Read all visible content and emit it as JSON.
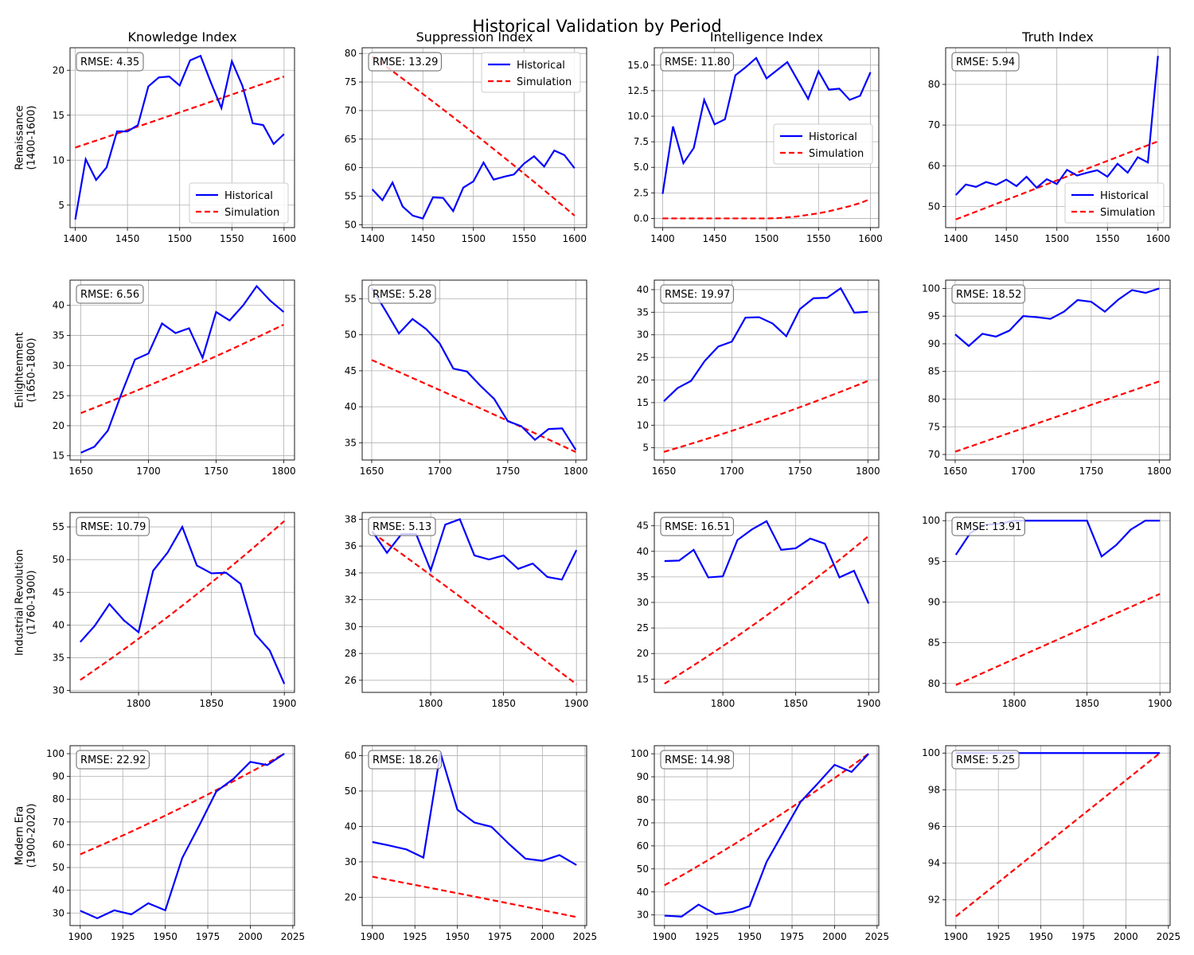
{
  "figure": {
    "title": "Historical Validation by Period"
  },
  "columns": [
    "Knowledge Index",
    "Suppression Index",
    "Intelligence Index",
    "Truth Index"
  ],
  "rows": [
    "Renaissance\n(1400-1600)",
    "Enlightenment\n(1650-1800)",
    "Industrial Revolution\n(1760-1900)",
    "Modern Era\n(1900-2020)"
  ],
  "legend": {
    "historical": "Historical",
    "simulation": "Simulation"
  },
  "colors": {
    "historical": "#0000ff",
    "simulation": "#ff0000",
    "grid": "#b0b0b0"
  },
  "chart_data": [
    {
      "type": "line",
      "row": 0,
      "col": 0,
      "title": "Knowledge Index",
      "rmse": "RMSE: 4.35",
      "legend": "lower right",
      "xlim": [
        1395,
        1610
      ],
      "ylim": [
        2.5,
        22.5
      ],
      "xticks": [
        1400,
        1450,
        1500,
        1550,
        1600
      ],
      "yticks": [
        5,
        10,
        15,
        20
      ],
      "historical": {
        "x": [
          1400,
          1410,
          1420,
          1430,
          1440,
          1450,
          1460,
          1470,
          1480,
          1490,
          1500,
          1510,
          1520,
          1530,
          1540,
          1550,
          1560,
          1570,
          1580,
          1590,
          1600
        ],
        "y": [
          3.4,
          10.1,
          7.8,
          9.2,
          13.2,
          13.2,
          13.9,
          18.2,
          19.2,
          19.3,
          18.3,
          21.1,
          21.6,
          18.6,
          15.8,
          21.0,
          18.3,
          14.1,
          13.9,
          11.8,
          12.9
        ]
      },
      "simulation": {
        "x": [
          1400,
          1600
        ],
        "y": [
          11.4,
          19.3
        ],
        "curve": 0.02
      }
    },
    {
      "type": "line",
      "row": 0,
      "col": 1,
      "title": "Suppression Index",
      "rmse": "RMSE: 13.29",
      "legend": "upper right",
      "xlim": [
        1390,
        1612
      ],
      "ylim": [
        49.5,
        81
      ],
      "xticks": [
        1400,
        1450,
        1500,
        1550,
        1600
      ],
      "yticks": [
        50,
        55,
        60,
        65,
        70,
        75,
        80
      ],
      "historical": {
        "x": [
          1400,
          1410,
          1420,
          1430,
          1440,
          1450,
          1460,
          1470,
          1480,
          1490,
          1500,
          1510,
          1520,
          1530,
          1540,
          1550,
          1560,
          1570,
          1580,
          1590,
          1600
        ],
        "y": [
          56.2,
          54.3,
          57.4,
          53.2,
          51.6,
          51.1,
          54.8,
          54.7,
          52.4,
          56.5,
          57.6,
          60.9,
          57.9,
          58.4,
          58.8,
          60.7,
          62.0,
          60.2,
          63.0,
          62.2,
          59.9
        ]
      },
      "simulation": {
        "x": [
          1400,
          1600
        ],
        "y": [
          79.5,
          51.6
        ],
        "curve": -0.08
      }
    },
    {
      "type": "line",
      "row": 0,
      "col": 2,
      "title": "Intelligence Index",
      "rmse": "RMSE: 11.80",
      "legend": "center right",
      "xlim": [
        1392,
        1608
      ],
      "ylim": [
        -0.9,
        16.7
      ],
      "xticks": [
        1400,
        1450,
        1500,
        1550,
        1600
      ],
      "yticks": [
        0.0,
        2.5,
        5.0,
        7.5,
        10.0,
        12.5,
        15.0
      ],
      "historical": {
        "x": [
          1400,
          1410,
          1420,
          1430,
          1440,
          1450,
          1460,
          1470,
          1480,
          1490,
          1500,
          1510,
          1520,
          1530,
          1540,
          1550,
          1560,
          1570,
          1580,
          1590,
          1600
        ],
        "y": [
          2.4,
          9.0,
          5.4,
          6.9,
          11.6,
          9.2,
          9.7,
          14.0,
          14.8,
          15.7,
          13.7,
          14.5,
          15.3,
          13.5,
          11.7,
          14.4,
          12.6,
          12.7,
          11.6,
          12.0,
          14.3
        ]
      },
      "simulation": {
        "x": [
          1400,
          1500,
          1510,
          1520,
          1530,
          1540,
          1550,
          1560,
          1570,
          1580,
          1590,
          1600
        ],
        "y": [
          0,
          0,
          0.02,
          0.1,
          0.2,
          0.35,
          0.5,
          0.7,
          0.95,
          1.2,
          1.5,
          1.9
        ]
      }
    },
    {
      "type": "line",
      "row": 0,
      "col": 3,
      "title": "Truth Index",
      "rmse": "RMSE: 5.94",
      "legend": "lower right",
      "xlim": [
        1390,
        1612
      ],
      "ylim": [
        44.8,
        89
      ],
      "xticks": [
        1400,
        1450,
        1500,
        1550,
        1600
      ],
      "yticks": [
        50,
        60,
        70,
        80
      ],
      "historical": {
        "x": [
          1400,
          1410,
          1420,
          1430,
          1440,
          1450,
          1460,
          1470,
          1480,
          1490,
          1500,
          1510,
          1520,
          1530,
          1540,
          1550,
          1560,
          1570,
          1580,
          1590,
          1600
        ],
        "y": [
          52.8,
          55.4,
          54.8,
          56.0,
          55.3,
          56.6,
          55.0,
          57.3,
          54.6,
          56.7,
          55.5,
          59.0,
          57.6,
          58.3,
          58.9,
          57.3,
          60.5,
          58.3,
          62.1,
          60.8,
          87.0
        ]
      },
      "simulation": {
        "x": [
          1400,
          1600
        ],
        "y": [
          46.8,
          66.0
        ],
        "curve": 0.0
      }
    },
    {
      "type": "line",
      "row": 1,
      "col": 0,
      "title": "",
      "rmse": "RMSE: 6.56",
      "legend": "",
      "xlim": [
        1642,
        1808
      ],
      "ylim": [
        14.3,
        44.2
      ],
      "xticks": [
        1650,
        1700,
        1750,
        1800
      ],
      "yticks": [
        15,
        20,
        25,
        30,
        35,
        40
      ],
      "historical": {
        "x": [
          1650,
          1660,
          1670,
          1680,
          1690,
          1700,
          1710,
          1720,
          1730,
          1740,
          1750,
          1760,
          1770,
          1780,
          1790,
          1800
        ],
        "y": [
          15.5,
          16.5,
          19.2,
          25.3,
          31.0,
          32.0,
          37.0,
          35.4,
          36.2,
          31.3,
          38.9,
          37.5,
          40.0,
          43.2,
          40.8,
          38.9
        ]
      },
      "simulation": {
        "x": [
          1650,
          1800
        ],
        "y": [
          22.1,
          36.8
        ],
        "curve": 0.12
      }
    },
    {
      "type": "line",
      "row": 1,
      "col": 1,
      "title": "",
      "rmse": "RMSE: 5.28",
      "legend": "",
      "xlim": [
        1643,
        1808
      ],
      "ylim": [
        32.6,
        57.6
      ],
      "xticks": [
        1650,
        1700,
        1750,
        1800
      ],
      "yticks": [
        35,
        40,
        45,
        50,
        55
      ],
      "historical": {
        "x": [
          1650,
          1660,
          1670,
          1680,
          1690,
          1700,
          1710,
          1720,
          1730,
          1740,
          1750,
          1760,
          1770,
          1780,
          1790,
          1800
        ],
        "y": [
          56.5,
          53.4,
          50.2,
          52.2,
          50.8,
          48.8,
          45.3,
          44.9,
          42.9,
          41.1,
          38.0,
          37.3,
          35.4,
          36.9,
          37.0,
          34.0
        ]
      },
      "simulation": {
        "x": [
          1650,
          1800
        ],
        "y": [
          46.5,
          33.7
        ],
        "curve": -0.03
      }
    },
    {
      "type": "line",
      "row": 1,
      "col": 2,
      "title": "",
      "rmse": "RMSE: 19.97",
      "legend": "",
      "xlim": [
        1643,
        1808
      ],
      "ylim": [
        2.3,
        42.1
      ],
      "xticks": [
        1650,
        1700,
        1750,
        1800
      ],
      "yticks": [
        5,
        10,
        15,
        20,
        25,
        30,
        35,
        40
      ],
      "historical": {
        "x": [
          1650,
          1660,
          1670,
          1680,
          1690,
          1700,
          1710,
          1720,
          1730,
          1740,
          1750,
          1760,
          1770,
          1780,
          1790,
          1800
        ],
        "y": [
          15.3,
          18.2,
          19.8,
          24.2,
          27.4,
          28.5,
          33.8,
          33.9,
          32.5,
          29.7,
          35.7,
          38.1,
          38.2,
          40.3,
          34.9,
          35.1
        ]
      },
      "simulation": {
        "x": [
          1650,
          1800
        ],
        "y": [
          4.1,
          19.8
        ],
        "curve": 0.2
      }
    },
    {
      "type": "line",
      "row": 1,
      "col": 3,
      "title": "",
      "rmse": "RMSE: 18.52",
      "legend": "",
      "xlim": [
        1643,
        1808
      ],
      "ylim": [
        69,
        101.5
      ],
      "xticks": [
        1650,
        1700,
        1750,
        1800
      ],
      "yticks": [
        70,
        75,
        80,
        85,
        90,
        95,
        100
      ],
      "historical": {
        "x": [
          1650,
          1660,
          1670,
          1680,
          1690,
          1700,
          1710,
          1720,
          1730,
          1740,
          1750,
          1760,
          1770,
          1780,
          1790,
          1800
        ],
        "y": [
          91.7,
          89.6,
          91.8,
          91.3,
          92.4,
          95.0,
          94.8,
          94.5,
          95.8,
          97.9,
          97.6,
          95.8,
          98.0,
          99.7,
          99.2,
          100.0
        ]
      },
      "simulation": {
        "x": [
          1650,
          1800
        ],
        "y": [
          70.5,
          83.2
        ],
        "curve": 0.0
      }
    },
    {
      "type": "line",
      "row": 2,
      "col": 0,
      "title": "",
      "rmse": "RMSE: 10.79",
      "legend": "",
      "xlim": [
        1753,
        1907
      ],
      "ylim": [
        29.7,
        57.2
      ],
      "xticks": [
        1800,
        1850,
        1900
      ],
      "yticks": [
        30,
        35,
        40,
        45,
        50,
        55
      ],
      "historical": {
        "x": [
          1760,
          1770,
          1780,
          1790,
          1800,
          1810,
          1820,
          1830,
          1840,
          1850,
          1860,
          1870,
          1880,
          1890,
          1900
        ],
        "y": [
          37.4,
          39.9,
          43.2,
          40.7,
          38.9,
          48.3,
          51.1,
          55.0,
          49.1,
          47.9,
          48.0,
          46.3,
          38.6,
          36.1,
          31.0
        ]
      },
      "simulation": {
        "x": [
          1760,
          1900
        ],
        "y": [
          31.6,
          55.9
        ],
        "curve": 0.15
      }
    },
    {
      "type": "line",
      "row": 2,
      "col": 1,
      "title": "",
      "rmse": "RMSE: 5.13",
      "legend": "",
      "xlim": [
        1753,
        1907
      ],
      "ylim": [
        25.1,
        38.5
      ],
      "xticks": [
        1800,
        1850,
        1900
      ],
      "yticks": [
        26,
        28,
        30,
        32,
        34,
        36,
        38
      ],
      "historical": {
        "x": [
          1760,
          1770,
          1780,
          1790,
          1800,
          1810,
          1820,
          1830,
          1840,
          1850,
          1860,
          1870,
          1880,
          1890,
          1900
        ],
        "y": [
          37.1,
          35.5,
          36.9,
          36.9,
          34.2,
          37.6,
          38.0,
          35.3,
          35.0,
          35.3,
          34.3,
          34.7,
          33.7,
          33.5,
          35.7
        ]
      },
      "simulation": {
        "x": [
          1760,
          1900
        ],
        "y": [
          37.0,
          25.7
        ],
        "curve": -0.03
      }
    },
    {
      "type": "line",
      "row": 2,
      "col": 2,
      "title": "",
      "rmse": "RMSE: 16.51",
      "legend": "",
      "xlim": [
        1753,
        1907
      ],
      "ylim": [
        12.4,
        47.6
      ],
      "xticks": [
        1800,
        1850,
        1900
      ],
      "yticks": [
        15,
        20,
        25,
        30,
        35,
        40,
        45
      ],
      "historical": {
        "x": [
          1760,
          1770,
          1780,
          1790,
          1800,
          1810,
          1820,
          1830,
          1840,
          1850,
          1860,
          1870,
          1880,
          1890,
          1900
        ],
        "y": [
          38.1,
          38.2,
          40.3,
          34.9,
          35.1,
          42.2,
          44.3,
          45.9,
          40.3,
          40.6,
          42.5,
          41.5,
          34.9,
          36.2,
          29.8
        ]
      },
      "simulation": {
        "x": [
          1760,
          1900
        ],
        "y": [
          14.1,
          43.0
        ],
        "curve": 0.18
      }
    },
    {
      "type": "line",
      "row": 2,
      "col": 3,
      "title": "",
      "rmse": "RMSE: 13.91",
      "legend": "",
      "xlim": [
        1753,
        1907
      ],
      "ylim": [
        78.9,
        101
      ],
      "xticks": [
        1800,
        1850,
        1900
      ],
      "yticks": [
        80,
        85,
        90,
        95,
        100
      ],
      "historical": {
        "x": [
          1760,
          1770,
          1780,
          1790,
          1800,
          1810,
          1820,
          1830,
          1840,
          1850,
          1860,
          1870,
          1880,
          1890,
          1900
        ],
        "y": [
          95.8,
          98.5,
          99.5,
          99.6,
          100.0,
          100.0,
          100.0,
          100.0,
          100.0,
          100.0,
          95.6,
          97.0,
          98.9,
          100.0,
          100.0
        ]
      },
      "simulation": {
        "x": [
          1760,
          1900
        ],
        "y": [
          79.8,
          91.0
        ],
        "curve": 0.0
      }
    },
    {
      "type": "line",
      "row": 3,
      "col": 0,
      "title": "",
      "rmse": "RMSE: 22.92",
      "legend": "",
      "xlim": [
        1894,
        2026
      ],
      "ylim": [
        24.5,
        103.5
      ],
      "xticks": [
        1900,
        1925,
        1950,
        1975,
        2000,
        2025
      ],
      "yticks": [
        30,
        40,
        50,
        60,
        70,
        80,
        90,
        100
      ],
      "historical": {
        "x": [
          1900,
          1910,
          1920,
          1930,
          1940,
          1950,
          1960,
          1970,
          1980,
          1990,
          2000,
          2010,
          2020
        ],
        "y": [
          31.0,
          27.7,
          31.2,
          29.4,
          34.3,
          31.2,
          54.2,
          68.5,
          83.4,
          88.9,
          96.4,
          95.0,
          100.0
        ]
      },
      "simulation": {
        "x": [
          1900,
          2020
        ],
        "y": [
          55.8,
          100.0
        ],
        "curve": 0.15
      }
    },
    {
      "type": "line",
      "row": 3,
      "col": 1,
      "title": "",
      "rmse": "RMSE: 18.26",
      "legend": "",
      "xlim": [
        1894,
        2026
      ],
      "ylim": [
        12.0,
        62.8
      ],
      "xticks": [
        1900,
        1925,
        1950,
        1975,
        2000,
        2025
      ],
      "yticks": [
        20,
        30,
        40,
        50,
        60
      ],
      "historical": {
        "x": [
          1900,
          1910,
          1920,
          1930,
          1940,
          1950,
          1960,
          1970,
          1980,
          1990,
          2000,
          2010,
          2020
        ],
        "y": [
          35.6,
          34.6,
          33.5,
          31.2,
          60.8,
          44.7,
          41.1,
          39.9,
          35.2,
          30.9,
          30.3,
          31.9,
          29.1
        ]
      },
      "simulation": {
        "x": [
          1900,
          2020
        ],
        "y": [
          25.8,
          14.4
        ],
        "curve": -0.03
      }
    },
    {
      "type": "line",
      "row": 3,
      "col": 2,
      "title": "",
      "rmse": "RMSE: 14.98",
      "legend": "",
      "xlim": [
        1894,
        2026
      ],
      "ylim": [
        25.4,
        103.5
      ],
      "xticks": [
        1900,
        1925,
        1950,
        1975,
        2000,
        2025
      ],
      "yticks": [
        30,
        40,
        50,
        60,
        70,
        80,
        90,
        100
      ],
      "historical": {
        "x": [
          1900,
          1910,
          1920,
          1930,
          1940,
          1950,
          1960,
          1970,
          1980,
          1990,
          2000,
          2010,
          2020
        ],
        "y": [
          29.7,
          29.3,
          34.5,
          30.4,
          31.3,
          33.8,
          53.0,
          66.1,
          79.1,
          87.0,
          95.2,
          92.1,
          100.0
        ]
      },
      "simulation": {
        "x": [
          1900,
          2020
        ],
        "y": [
          42.9,
          100.0
        ],
        "curve": 0.15
      }
    },
    {
      "type": "line",
      "row": 3,
      "col": 3,
      "title": "",
      "rmse": "RMSE: 5.25",
      "legend": "",
      "xlim": [
        1894,
        2026
      ],
      "ylim": [
        90.6,
        100.4
      ],
      "xticks": [
        1900,
        1925,
        1950,
        1975,
        2000,
        2025
      ],
      "yticks": [
        92,
        94,
        96,
        98,
        100
      ],
      "historical": {
        "x": [
          1900,
          2020
        ],
        "y": [
          100.0,
          100.0
        ]
      },
      "simulation": {
        "x": [
          1900,
          2020
        ],
        "y": [
          91.1,
          100.0
        ],
        "curve": 0.0
      }
    }
  ]
}
